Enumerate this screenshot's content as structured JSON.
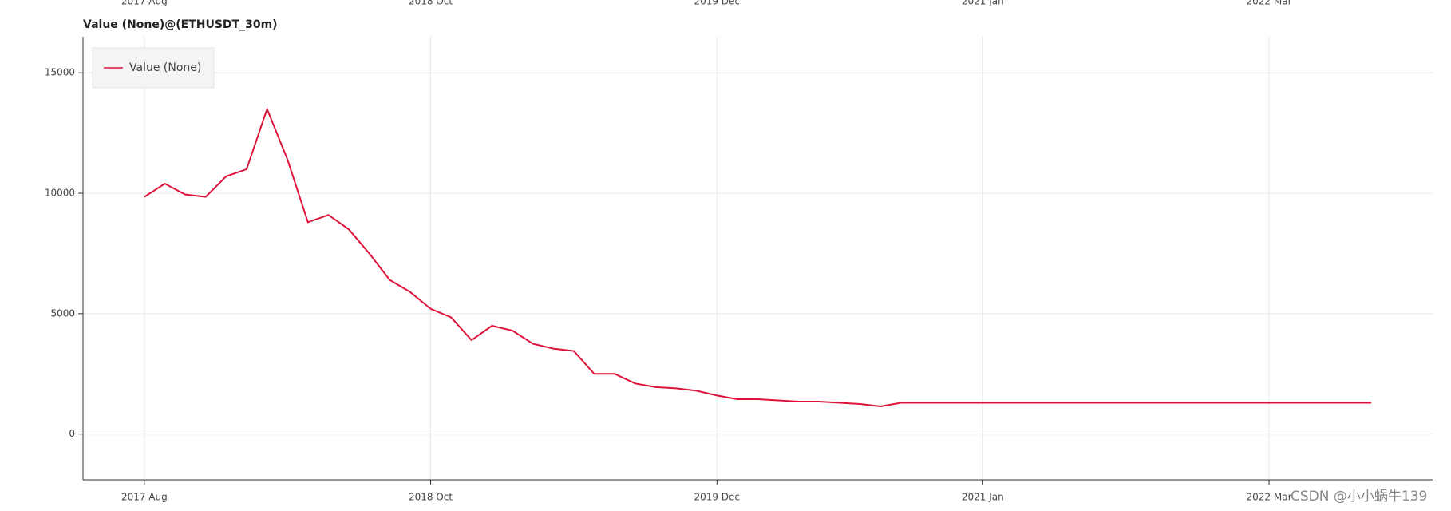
{
  "chart_data": {
    "type": "line",
    "title": "Value (None)@(ETHUSDT_30m)",
    "x": [
      "2017-08",
      "2017-09",
      "2017-10",
      "2017-11",
      "2017-12",
      "2018-01",
      "2018-02",
      "2018-03",
      "2018-04",
      "2018-05",
      "2018-06",
      "2018-07",
      "2018-08",
      "2018-09",
      "2018-10",
      "2018-11",
      "2018-12",
      "2019-01",
      "2019-02",
      "2019-03",
      "2019-04",
      "2019-05",
      "2019-06",
      "2019-07",
      "2019-08",
      "2019-09",
      "2019-10",
      "2019-11",
      "2019-12",
      "2020-01",
      "2020-02",
      "2020-03",
      "2020-04",
      "2020-05",
      "2020-06",
      "2020-07",
      "2020-08",
      "2020-09",
      "2021-06",
      "2022-08"
    ],
    "series": [
      {
        "name": "Value (None)",
        "color": "#dc143c",
        "values": [
          9850,
          10400,
          9950,
          9850,
          10700,
          11000,
          13500,
          11400,
          8800,
          9100,
          8500,
          7500,
          6400,
          5900,
          5200,
          4850,
          3900,
          4500,
          4300,
          3750,
          3550,
          3450,
          2500,
          2500,
          2100,
          1950,
          1900,
          1800,
          1600,
          1450,
          1450,
          1400,
          1350,
          1350,
          1300,
          1250,
          1150,
          1300,
          1300,
          1300
        ]
      }
    ],
    "xlim": [
      "2017-05",
      "2022-11"
    ],
    "xticks": [
      {
        "value": "2017-08",
        "label": "2017 Aug"
      },
      {
        "value": "2018-10",
        "label": "2018 Oct"
      },
      {
        "value": "2019-12",
        "label": "2019 Dec"
      },
      {
        "value": "2021-01",
        "label": "2021 Jan"
      },
      {
        "value": "2022-03",
        "label": "2022 Mar"
      }
    ],
    "ylim": [
      -1900,
      16500
    ],
    "yticks": [
      0,
      5000,
      10000,
      15000
    ],
    "grid": true,
    "legend": "top-left",
    "watermark": "CSDN @小小蜗牛139"
  }
}
